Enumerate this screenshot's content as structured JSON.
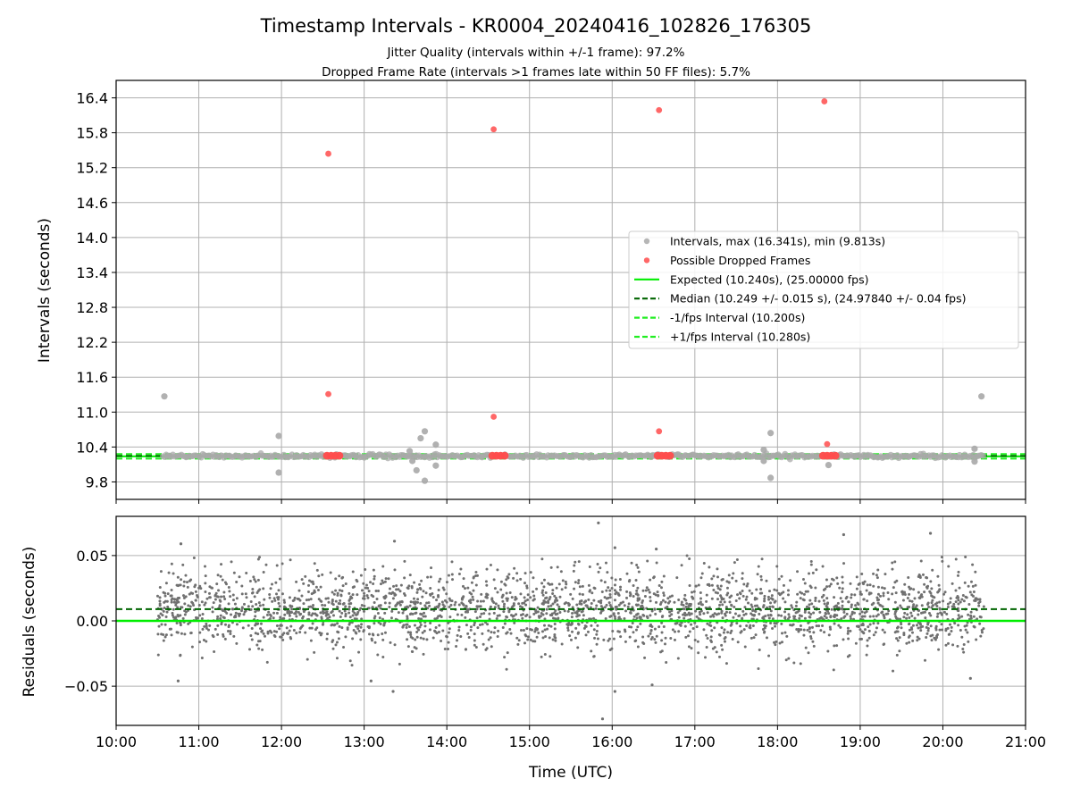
{
  "chart_data": [
    {
      "type": "scatter",
      "panel": "intervals",
      "title": "Timestamp Intervals - KR0004_20240416_102826_176305",
      "subtitle_lines": [
        "Jitter Quality (intervals within +/-1 frame): 97.2%",
        "Dropped Frame Rate (intervals >1 frames late within 50 FF files): 5.7%"
      ],
      "xlabel": "",
      "ylabel": "Intervals (seconds)",
      "xlim": [
        "10:00",
        "21:00"
      ],
      "ylim": [
        9.5,
        16.7
      ],
      "yticks": [
        "9.8",
        "10.4",
        "11.0",
        "11.6",
        "12.2",
        "12.8",
        "13.4",
        "14.0",
        "14.6",
        "15.2",
        "15.8",
        "16.4"
      ],
      "grid": true,
      "legend_position": "center-right",
      "legend": [
        {
          "label": "Intervals, max (16.341s), min (9.813s)",
          "kind": "marker",
          "color": "#a9a9a9"
        },
        {
          "label": "Possible Dropped Frames",
          "kind": "marker",
          "color": "#ff4c4c"
        },
        {
          "label": "Expected (10.240s), (25.00000 fps)",
          "kind": "solid",
          "color": "#00ee00"
        },
        {
          "label": "Median (10.249 +/- 0.015 s), (24.97840 +/- 0.04 fps)",
          "kind": "dashed",
          "color": "#006400"
        },
        {
          "label": "-1/fps Interval (10.200s)",
          "kind": "dashed",
          "color": "#22ee22"
        },
        {
          "label": "+1/fps Interval (10.280s)",
          "kind": "dashed",
          "color": "#22ee22"
        }
      ],
      "series": [
        {
          "name": "Intervals, max (16.341s), min (9.813s)",
          "color": "#a9a9a9",
          "band": {
            "x_start": "10:34",
            "x_end": "20:30",
            "y_center": 10.245,
            "y_spread": 0.03
          },
          "outliers": [
            {
              "x": "10:35",
              "y": 11.27
            },
            {
              "x": "11:58",
              "y": 10.59
            },
            {
              "x": "11:58",
              "y": 9.96
            },
            {
              "x": "13:33",
              "y": 10.33
            },
            {
              "x": "13:35",
              "y": 10.16
            },
            {
              "x": "13:38",
              "y": 10.0
            },
            {
              "x": "13:41",
              "y": 10.55
            },
            {
              "x": "13:44",
              "y": 10.67
            },
            {
              "x": "13:44",
              "y": 9.82
            },
            {
              "x": "13:52",
              "y": 10.44
            },
            {
              "x": "13:52",
              "y": 10.08
            },
            {
              "x": "17:50",
              "y": 10.35
            },
            {
              "x": "17:50",
              "y": 10.16
            },
            {
              "x": "17:55",
              "y": 10.64
            },
            {
              "x": "17:55",
              "y": 9.87
            },
            {
              "x": "18:37",
              "y": 10.09
            },
            {
              "x": "20:23",
              "y": 10.37
            },
            {
              "x": "20:23",
              "y": 10.15
            },
            {
              "x": "20:28",
              "y": 11.27
            }
          ]
        },
        {
          "name": "Possible Dropped Frames",
          "color": "#ff4c4c",
          "points": [
            {
              "x": "12:34",
              "y": 15.44
            },
            {
              "x": "12:34",
              "y": 11.31
            },
            {
              "x": "14:34",
              "y": 15.86
            },
            {
              "x": "14:34",
              "y": 10.92
            },
            {
              "x": "16:34",
              "y": 16.19
            },
            {
              "x": "16:34",
              "y": 10.67
            },
            {
              "x": "18:34",
              "y": 16.34
            },
            {
              "x": "18:36",
              "y": 10.45
            },
            {
              "x": "12:33",
              "y": 10.25
            },
            {
              "x": "12:36",
              "y": 10.25
            },
            {
              "x": "12:39",
              "y": 10.25
            },
            {
              "x": "12:42",
              "y": 10.25
            },
            {
              "x": "14:33",
              "y": 10.25
            },
            {
              "x": "14:36",
              "y": 10.25
            },
            {
              "x": "14:39",
              "y": 10.25
            },
            {
              "x": "14:42",
              "y": 10.25
            },
            {
              "x": "16:33",
              "y": 10.25
            },
            {
              "x": "16:36",
              "y": 10.25
            },
            {
              "x": "16:39",
              "y": 10.25
            },
            {
              "x": "16:42",
              "y": 10.25
            },
            {
              "x": "18:33",
              "y": 10.25
            },
            {
              "x": "18:36",
              "y": 10.25
            },
            {
              "x": "18:39",
              "y": 10.25
            },
            {
              "x": "18:42",
              "y": 10.25
            }
          ]
        }
      ],
      "reference_lines": [
        {
          "name": "Expected (10.240s), (25.00000 fps)",
          "y": 10.24,
          "style": "solid",
          "color": "#00ee00"
        },
        {
          "name": "Median (10.249 +/- 0.015 s), (24.97840 +/- 0.04 fps)",
          "y": 10.249,
          "style": "dashed",
          "color": "#006400"
        },
        {
          "name": "-1/fps Interval (10.200s)",
          "y": 10.2,
          "style": "dashed",
          "color": "#22ee22"
        },
        {
          "name": "+1/fps Interval (10.280s)",
          "y": 10.28,
          "style": "dashed",
          "color": "#22ee22"
        }
      ]
    },
    {
      "type": "scatter",
      "panel": "residuals",
      "xlabel": "Time (UTC)",
      "ylabel": "Residuals (seconds)",
      "xlim": [
        "10:00",
        "21:00"
      ],
      "ylim": [
        -0.08,
        0.08
      ],
      "xticks": [
        "10:00",
        "11:00",
        "12:00",
        "13:00",
        "14:00",
        "15:00",
        "16:00",
        "17:00",
        "18:00",
        "19:00",
        "20:00",
        "21:00"
      ],
      "yticks": [
        "−0.05",
        "0.00",
        "0.05"
      ],
      "grid": true,
      "series": [
        {
          "name": "",
          "color": "#707070",
          "distribution": {
            "x_start": "10:30",
            "x_end": "20:30",
            "count": 2600,
            "mean": 0.008,
            "std": 0.015
          },
          "outliers": [
            {
              "x": "15:50",
              "y": 0.075
            },
            {
              "x": "15:53",
              "y": -0.075
            },
            {
              "x": "16:02",
              "y": -0.054
            },
            {
              "x": "16:02",
              "y": 0.056
            },
            {
              "x": "13:21",
              "y": -0.054
            },
            {
              "x": "13:22",
              "y": 0.061
            },
            {
              "x": "10:45",
              "y": -0.046
            },
            {
              "x": "10:47",
              "y": 0.059
            },
            {
              "x": "16:29",
              "y": -0.049
            },
            {
              "x": "16:32",
              "y": 0.055
            },
            {
              "x": "19:51",
              "y": 0.067
            },
            {
              "x": "18:48",
              "y": 0.066
            },
            {
              "x": "20:20",
              "y": -0.044
            },
            {
              "x": "13:05",
              "y": -0.046
            }
          ]
        }
      ],
      "reference_lines": [
        {
          "y": 0.0,
          "style": "solid",
          "color": "#00ee00"
        },
        {
          "y": 0.009,
          "style": "dashed",
          "color": "#006400"
        }
      ]
    }
  ]
}
